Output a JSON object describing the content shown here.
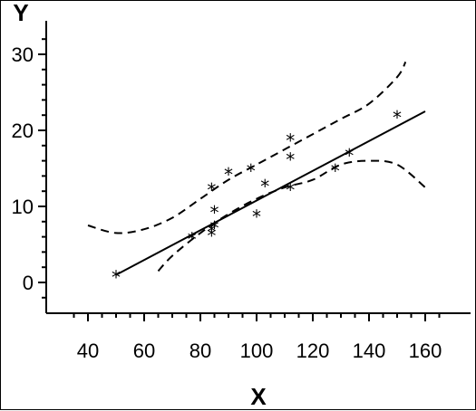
{
  "chart_data": {
    "type": "scatter",
    "title": "",
    "xlabel": "X",
    "ylabel": "Y",
    "xlim": [
      30,
      168
    ],
    "ylim": [
      -4,
      33
    ],
    "x_ticks": [
      40,
      60,
      80,
      100,
      120,
      140,
      160
    ],
    "y_ticks": [
      0,
      10,
      20,
      30
    ],
    "marker": "*",
    "points": [
      {
        "x": 50,
        "y": 1
      },
      {
        "x": 77,
        "y": 6
      },
      {
        "x": 84,
        "y": 6.5
      },
      {
        "x": 84,
        "y": 7
      },
      {
        "x": 85,
        "y": 7.5
      },
      {
        "x": 85,
        "y": 9.5
      },
      {
        "x": 84,
        "y": 12.5
      },
      {
        "x": 90,
        "y": 14.5
      },
      {
        "x": 98,
        "y": 15
      },
      {
        "x": 100,
        "y": 9
      },
      {
        "x": 103,
        "y": 13
      },
      {
        "x": 112,
        "y": 12.5
      },
      {
        "x": 112,
        "y": 16.5
      },
      {
        "x": 112,
        "y": 19
      },
      {
        "x": 128,
        "y": 15
      },
      {
        "x": 133,
        "y": 17
      },
      {
        "x": 150,
        "y": 22
      }
    ],
    "fit_line": {
      "x": [
        50,
        160
      ],
      "y": [
        1,
        22.5
      ]
    },
    "upper_band": {
      "x": [
        40,
        50,
        60,
        70,
        80,
        90,
        100,
        110,
        120,
        130,
        140,
        150,
        153
      ],
      "y": [
        7.5,
        6.5,
        7,
        8.5,
        11,
        13.5,
        15.5,
        17.5,
        19.5,
        21.5,
        23.5,
        27,
        29
      ]
    },
    "lower_band": {
      "x": [
        65,
        70,
        80,
        90,
        100,
        110,
        120,
        130,
        140,
        150,
        160
      ],
      "y": [
        1.5,
        3.5,
        6.5,
        9,
        11,
        12.5,
        13.5,
        15.5,
        16,
        15.5,
        12.5
      ]
    }
  }
}
